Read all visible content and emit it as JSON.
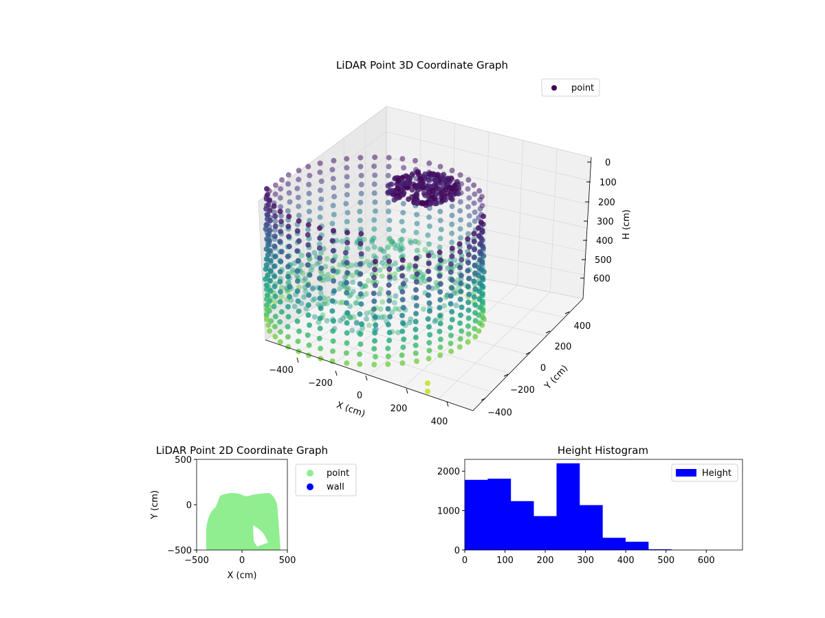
{
  "chart_data": [
    {
      "type": "scatter",
      "projection": "3d",
      "title": "LiDAR Point 3D Coordinate Graph",
      "xlabel": "X (cm)",
      "ylabel": "Y (cm)",
      "zlabel": "H (cm)",
      "xticks": [
        "−400",
        "−200",
        "0",
        "200",
        "400"
      ],
      "yticks": [
        "−400",
        "−200",
        "0",
        "200",
        "400"
      ],
      "zticks": [
        "0",
        "100",
        "200",
        "300",
        "400",
        "500",
        "600"
      ],
      "zaxis_inverted": true,
      "colormap": "viridis",
      "legend": {
        "entries": [
          "point"
        ],
        "placement": "top-right"
      },
      "grid": true
    },
    {
      "type": "scatter",
      "title": "LiDAR Point 2D Coordinate Graph",
      "xlabel": "X (cm)",
      "ylabel": "Y (cm)",
      "xticks": [
        "−500",
        "0",
        "500"
      ],
      "yticks": [
        "500",
        "0",
        "−500"
      ],
      "xlim": [
        -500,
        500
      ],
      "ylim": [
        -500,
        500
      ],
      "series": [
        {
          "name": "point",
          "color": "#90ee90"
        },
        {
          "name": "wall",
          "color": "#0000ff"
        }
      ],
      "legend_placement": "outside-right"
    },
    {
      "type": "bar",
      "title": "Height Histogram",
      "xticks": [
        "0",
        "100",
        "200",
        "300",
        "400",
        "500",
        "600"
      ],
      "yticks": [
        "0",
        "1000",
        "2000"
      ],
      "xlim": [
        0,
        690
      ],
      "ylim": [
        0,
        2300
      ],
      "bin_edges": [
        0,
        57,
        114,
        171,
        228,
        285,
        342,
        399,
        456,
        513,
        570,
        627,
        684
      ],
      "values": [
        1780,
        1810,
        1240,
        860,
        2200,
        1140,
        310,
        210,
        20,
        5,
        2,
        1
      ],
      "series": [
        {
          "name": "Height",
          "color": "#0000ff"
        }
      ],
      "legend_placement": "top-right"
    }
  ]
}
